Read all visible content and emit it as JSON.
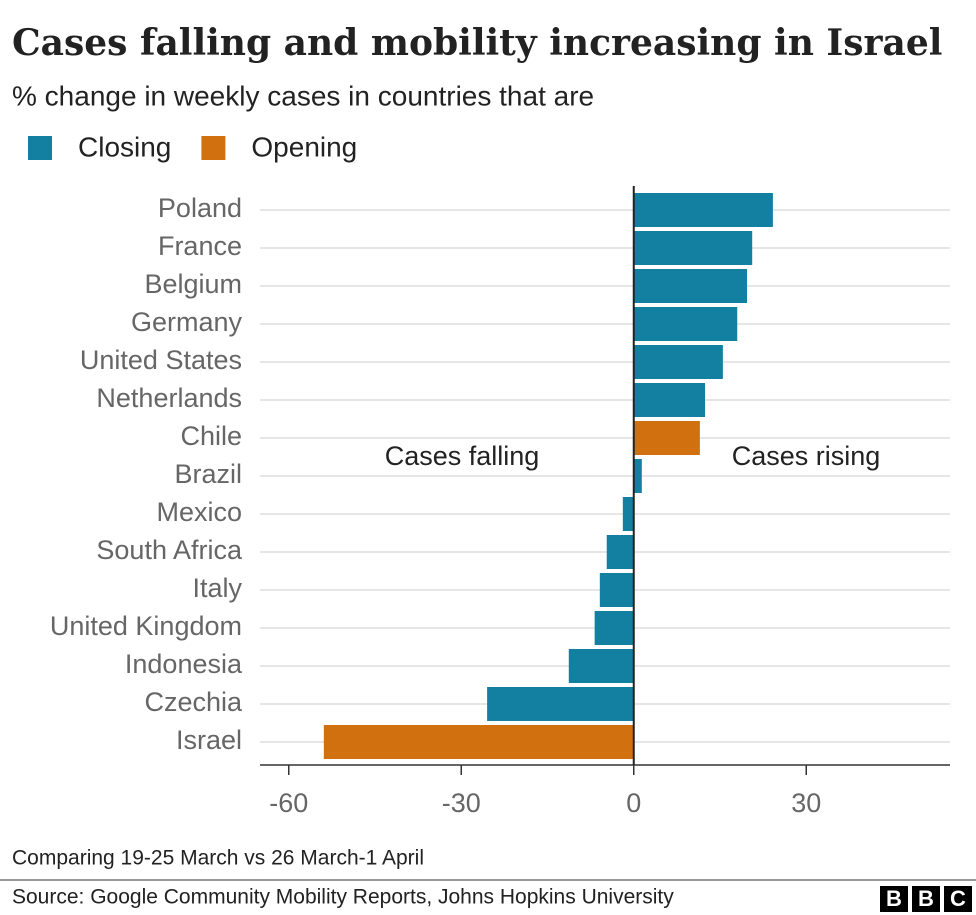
{
  "chart_data": {
    "type": "hbar",
    "title": "Cases falling and mobility increasing in Israel",
    "subtitle": "% change in weekly cases in countries that are",
    "categories": [
      "Poland",
      "France",
      "Belgium",
      "Germany",
      "United States",
      "Netherlands",
      "Chile",
      "Brazil",
      "Mexico",
      "South Africa",
      "Italy",
      "United Kingdom",
      "Indonesia",
      "Czechia",
      "Israel"
    ],
    "series": [
      {
        "name": "Closing",
        "color": "#1380a1",
        "values": [
          24.2,
          20.6,
          19.7,
          18,
          15.5,
          12.4,
          null,
          1.4,
          -1.9,
          -4.7,
          -5.9,
          -6.8,
          -11.3,
          -25.5,
          null
        ]
      },
      {
        "name": "Opening",
        "color": "#d1700e",
        "values": [
          null,
          null,
          null,
          null,
          null,
          null,
          11.5,
          null,
          null,
          null,
          null,
          null,
          null,
          null,
          -53.9
        ]
      }
    ],
    "xlim": [
      -65,
      55
    ],
    "xticks": [
      -60,
      -30,
      0,
      30
    ],
    "annotations": [
      "Cases falling",
      "Cases rising"
    ],
    "note": "Comparing 19-25 March vs 26 March-1 April",
    "source": "Source: Google Community Mobility Reports, Johns Hopkins University",
    "logo": [
      "B",
      "B",
      "C"
    ]
  }
}
